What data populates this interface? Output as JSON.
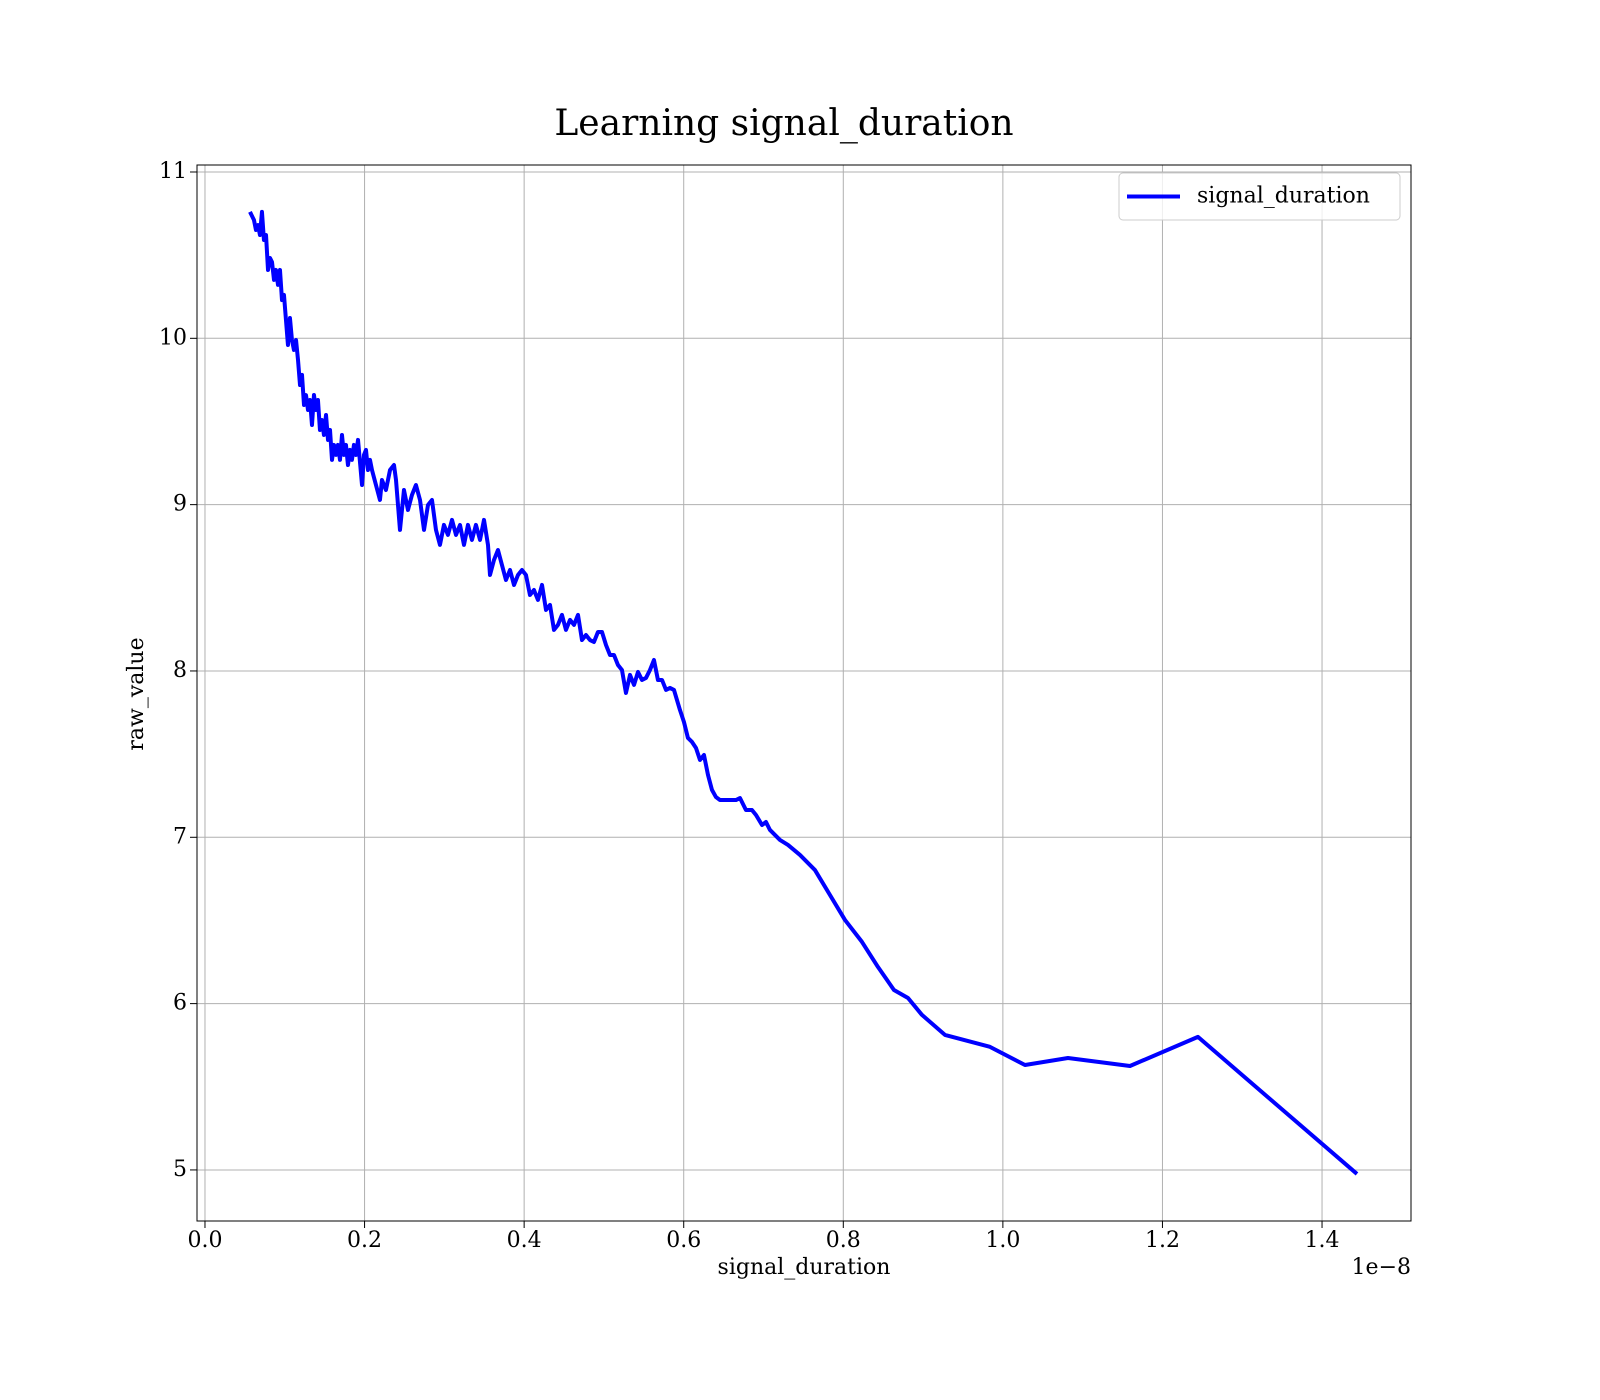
{
  "chart_data": {
    "type": "line",
    "title": "Learning signal_duration",
    "x_label": "signal_duration",
    "y_label": "raw_value",
    "x_offset_label": "1e−8",
    "xlim": [
      -0.01,
      1.5115
    ],
    "ylim": [
      4.693,
      11.042
    ],
    "xticks": [
      {
        "value": 0,
        "label": "0.0"
      },
      0.2,
      0.4,
      0.6,
      0.8,
      {
        "value": 1,
        "label": "1.0"
      },
      1.2,
      1.4
    ],
    "yticks": [
      5,
      6,
      7,
      8,
      9,
      10,
      11
    ],
    "grid": true,
    "legend": "upper right",
    "x": [
      0.0564,
      0.0614,
      0.0639,
      0.0664,
      0.0689,
      0.0714,
      0.0739,
      0.0765,
      0.079,
      0.0815,
      0.084,
      0.0865,
      0.089,
      0.0915,
      0.094,
      0.0965,
      0.099,
      0.1015,
      0.104,
      0.1065,
      0.109,
      0.1115,
      0.1141,
      0.1166,
      0.1191,
      0.1216,
      0.1241,
      0.1266,
      0.1291,
      0.1316,
      0.1341,
      0.1366,
      0.1391,
      0.1416,
      0.1441,
      0.1466,
      0.1491,
      0.1517,
      0.1542,
      0.1567,
      0.1592,
      0.1617,
      0.1642,
      0.1667,
      0.1692,
      0.1717,
      0.1742,
      0.1767,
      0.1792,
      0.1817,
      0.1842,
      0.1867,
      0.1893,
      0.1918,
      0.1968,
      0.1993,
      0.2018,
      0.2043,
      0.2068,
      0.2093,
      0.2143,
      0.2193,
      0.2218,
      0.2268,
      0.2319,
      0.2369,
      0.2394,
      0.2444,
      0.2494,
      0.2544,
      0.2594,
      0.2644,
      0.2695,
      0.2745,
      0.2795,
      0.2845,
      0.2895,
      0.2945,
      0.2995,
      0.3045,
      0.3096,
      0.3146,
      0.3196,
      0.3246,
      0.3296,
      0.3346,
      0.3396,
      0.3447,
      0.3497,
      0.3547,
      0.3572,
      0.3622,
      0.3672,
      0.3722,
      0.3772,
      0.3823,
      0.3873,
      0.3923,
      0.3973,
      0.4023,
      0.4073,
      0.4123,
      0.4173,
      0.4224,
      0.4274,
      0.4324,
      0.4374,
      0.4424,
      0.4474,
      0.4524,
      0.4575,
      0.4625,
      0.4675,
      0.4725,
      0.4775,
      0.4825,
      0.4875,
      0.4925,
      0.4976,
      0.5026,
      0.5076,
      0.5126,
      0.5176,
      0.5226,
      0.5276,
      0.5327,
      0.5377,
      0.5427,
      0.5477,
      0.5527,
      0.5577,
      0.5627,
      0.5677,
      0.5728,
      0.5778,
      0.5828,
      0.5878,
      0.5953,
      0.6003,
      0.6053,
      0.6104,
      0.6154,
      0.6204,
      0.6254,
      0.6304,
      0.6354,
      0.6404,
      0.6454,
      0.658,
      0.6655,
      0.6705,
      0.678,
      0.6855,
      0.6906,
      0.6981,
      0.7031,
      0.7081,
      0.7206,
      0.7307,
      0.7457,
      0.7645,
      0.7833,
      0.8021,
      0.8234,
      0.8435,
      0.8635,
      0.8811,
      0.8986,
      0.9274,
      0.9838,
      1.0277,
      1.0816,
      1.1593,
      1.2445,
      1.4438
    ],
    "series": [
      {
        "name": "signal_duration",
        "color": "#0000ff",
        "values": [
          10.76,
          10.711,
          10.651,
          10.681,
          10.621,
          10.76,
          10.591,
          10.621,
          10.411,
          10.483,
          10.459,
          10.351,
          10.411,
          10.321,
          10.411,
          10.23,
          10.261,
          10.11,
          9.96,
          10.122,
          9.99,
          9.93,
          9.99,
          9.87,
          9.719,
          9.78,
          9.599,
          9.659,
          9.569,
          9.629,
          9.479,
          9.659,
          9.569,
          9.629,
          9.449,
          9.509,
          9.419,
          9.539,
          9.389,
          9.449,
          9.269,
          9.359,
          9.299,
          9.359,
          9.269,
          9.419,
          9.299,
          9.359,
          9.238,
          9.329,
          9.269,
          9.359,
          9.299,
          9.389,
          9.118,
          9.299,
          9.329,
          9.208,
          9.269,
          9.208,
          9.118,
          9.028,
          9.148,
          9.088,
          9.208,
          9.238,
          9.148,
          8.848,
          9.088,
          8.968,
          9.058,
          9.118,
          9.028,
          8.848,
          8.998,
          9.028,
          8.848,
          8.758,
          8.878,
          8.818,
          8.908,
          8.818,
          8.878,
          8.758,
          8.878,
          8.788,
          8.878,
          8.788,
          8.908,
          8.758,
          8.577,
          8.667,
          8.727,
          8.637,
          8.547,
          8.607,
          8.517,
          8.577,
          8.607,
          8.577,
          8.457,
          8.487,
          8.427,
          8.517,
          8.367,
          8.397,
          8.247,
          8.277,
          8.337,
          8.247,
          8.307,
          8.277,
          8.337,
          8.186,
          8.216,
          8.186,
          8.174,
          8.234,
          8.234,
          8.156,
          8.096,
          8.096,
          8.036,
          8.006,
          7.868,
          7.976,
          7.916,
          7.994,
          7.946,
          7.958,
          8.006,
          8.066,
          7.946,
          7.946,
          7.886,
          7.898,
          7.886,
          7.765,
          7.693,
          7.597,
          7.573,
          7.537,
          7.465,
          7.495,
          7.375,
          7.285,
          7.242,
          7.224,
          7.224,
          7.224,
          7.236,
          7.164,
          7.164,
          7.134,
          7.074,
          7.092,
          7.044,
          6.984,
          6.954,
          6.894,
          6.803,
          6.653,
          6.503,
          6.371,
          6.22,
          6.082,
          6.034,
          5.932,
          5.812,
          5.74,
          5.631,
          5.673,
          5.625,
          5.8,
          4.976
        ]
      }
    ]
  }
}
